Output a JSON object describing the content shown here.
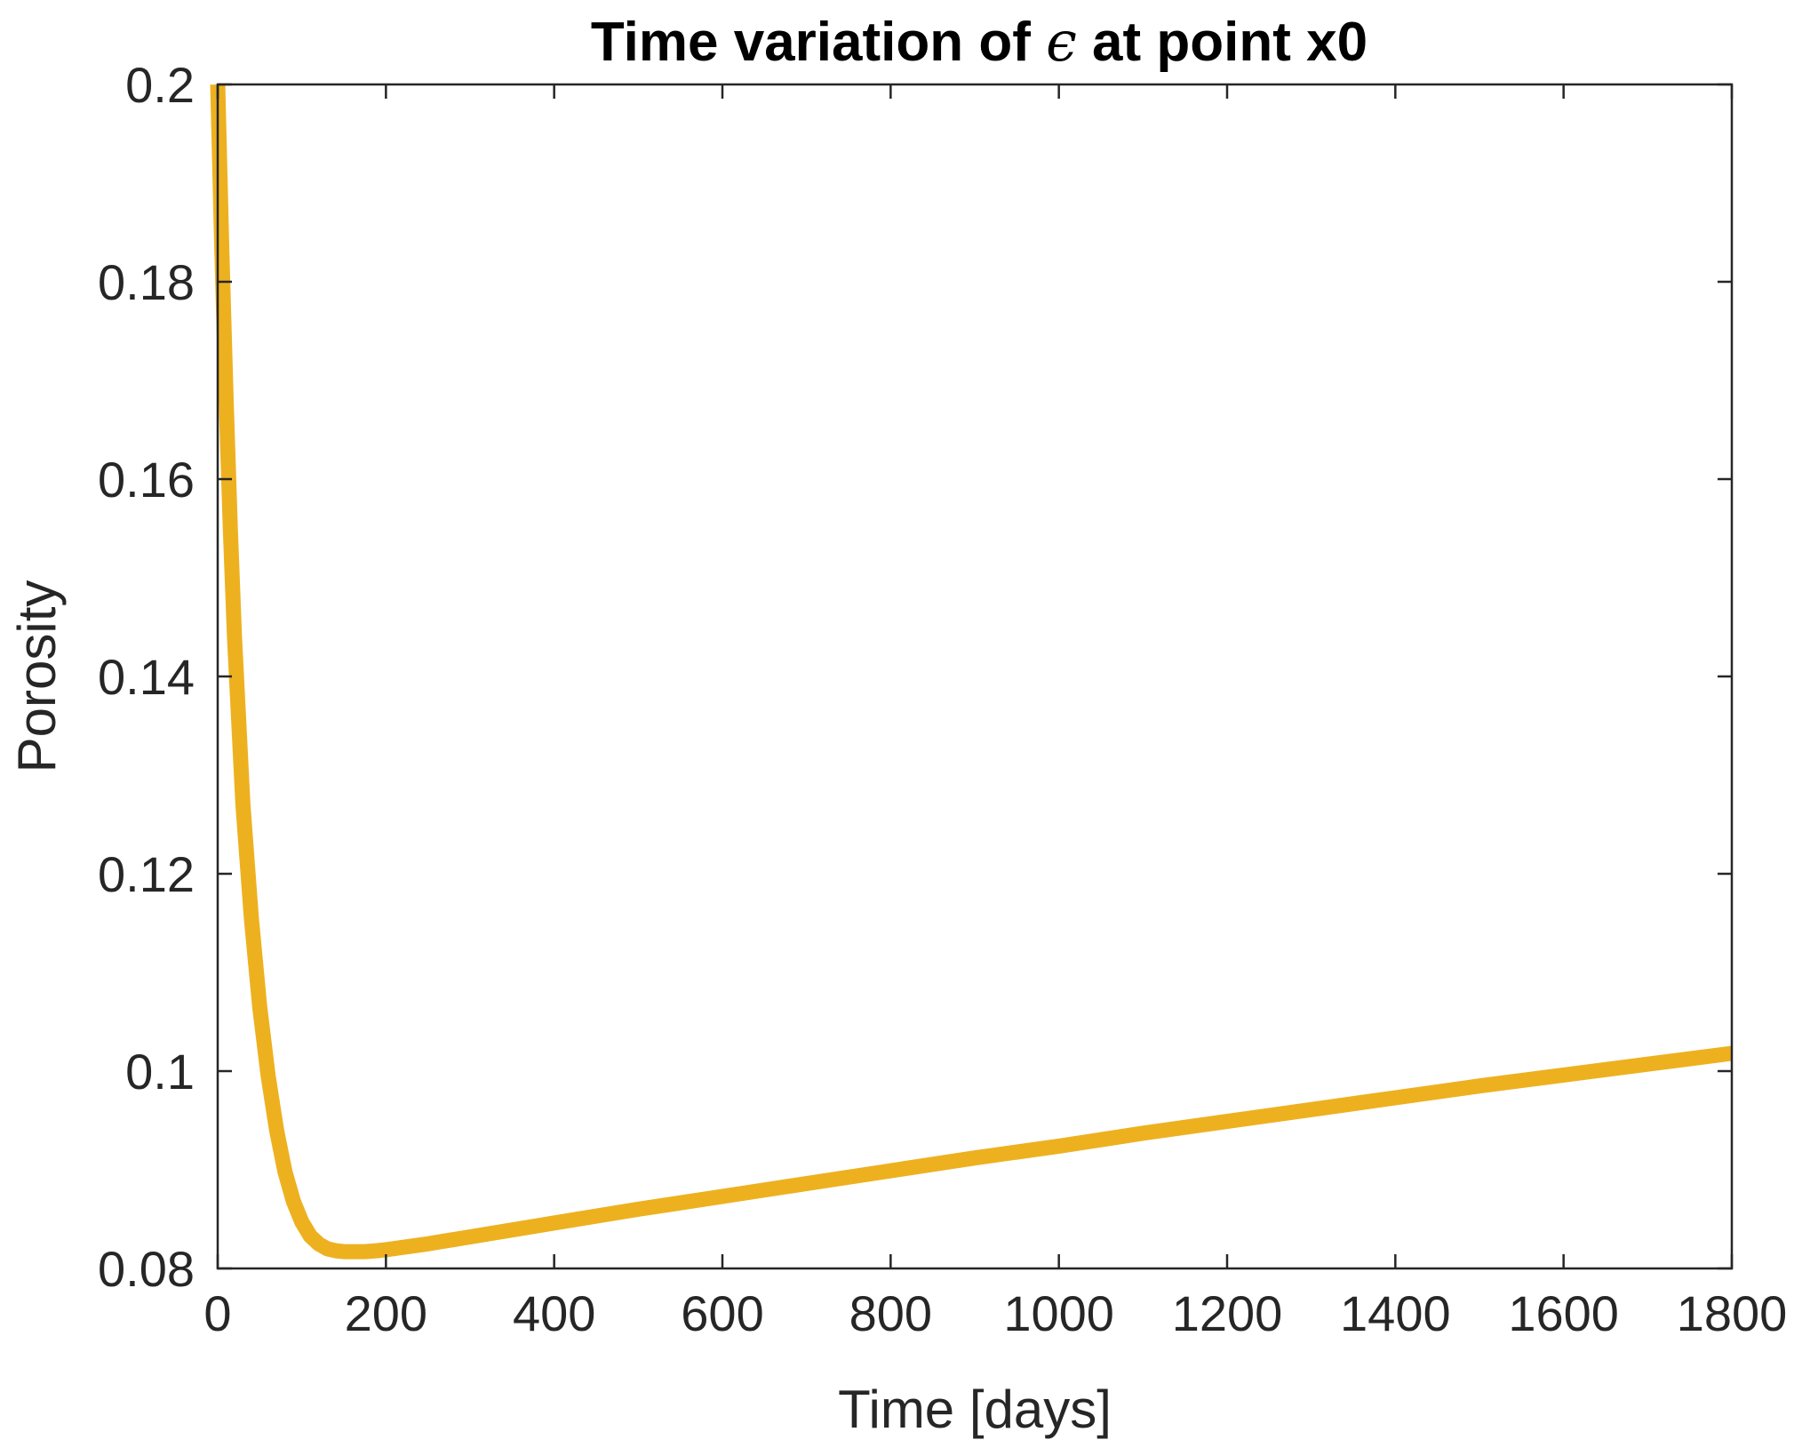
{
  "chart_data": {
    "type": "line",
    "title": {
      "prefix": "Time variation of ",
      "symbol": "ϵ",
      "suffix": " at point x0"
    },
    "xlabel": "Time [days]",
    "ylabel": "Porosity",
    "xlim": [
      0,
      1800
    ],
    "ylim": [
      0.08,
      0.2
    ],
    "xticks": [
      0,
      200,
      400,
      600,
      800,
      1000,
      1200,
      1400,
      1600,
      1800
    ],
    "xtick_labels": [
      "0",
      "200",
      "400",
      "600",
      "800",
      "1000",
      "1200",
      "1400",
      "1600",
      "1800"
    ],
    "yticks": [
      0.08,
      0.1,
      0.12,
      0.14,
      0.16,
      0.18,
      0.2
    ],
    "ytick_labels": [
      "0.08",
      "0.1",
      "0.12",
      "0.14",
      "0.16",
      "0.18",
      "0.2"
    ],
    "grid": false,
    "box": true,
    "series": [
      {
        "color": "#EDB120",
        "x": [
          0,
          5,
          10,
          15,
          20,
          30,
          40,
          50,
          60,
          70,
          80,
          90,
          100,
          110,
          120,
          130,
          140,
          150,
          160,
          175,
          190,
          200,
          250,
          300,
          400,
          500,
          600,
          700,
          800,
          900,
          1000,
          1100,
          1200,
          1300,
          1400,
          1500,
          1600,
          1700,
          1800
        ],
        "y": [
          0.2,
          0.183,
          0.168,
          0.155,
          0.144,
          0.127,
          0.1155,
          0.1065,
          0.0995,
          0.094,
          0.0898,
          0.0868,
          0.0847,
          0.0833,
          0.0825,
          0.082,
          0.0818,
          0.0817,
          0.0817,
          0.0817,
          0.0818,
          0.0819,
          0.0825,
          0.0832,
          0.0846,
          0.086,
          0.0873,
          0.0886,
          0.0899,
          0.0912,
          0.0924,
          0.0937,
          0.0949,
          0.0961,
          0.0973,
          0.0985,
          0.0996,
          0.1007,
          0.1018
        ]
      }
    ]
  }
}
